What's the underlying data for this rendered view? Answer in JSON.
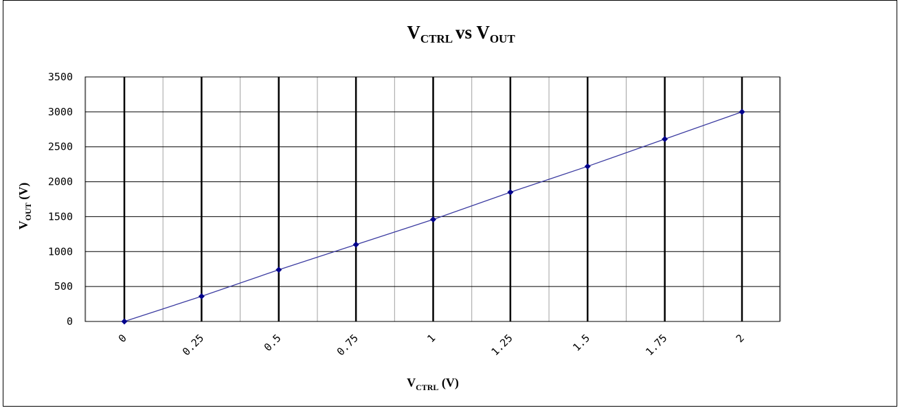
{
  "chart_data": {
    "type": "line",
    "title": {
      "main": "V",
      "sub": "CTRL",
      "mid": "vs V",
      "sub2": "OUT"
    },
    "xlabel": {
      "main": "V",
      "sub": "CTRL",
      "rest": " (V)"
    },
    "ylabel": {
      "main": "V",
      "sub": "OUT",
      "rest": " (V)"
    },
    "x": [
      0,
      0.25,
      0.5,
      0.75,
      1,
      1.25,
      1.5,
      1.75,
      2
    ],
    "x_tick_labels": [
      "0",
      "0.25",
      "0.5",
      "0.75",
      "1",
      "1.25",
      "1.5",
      "1.75",
      "2"
    ],
    "series": [
      {
        "values": [
          0,
          360,
          740,
          1100,
          1460,
          1850,
          2220,
          2610,
          3000
        ],
        "color": "#3a3aa0",
        "marker_color": "#00008b"
      }
    ],
    "y_ticks": [
      0,
      500,
      1000,
      1500,
      2000,
      2500,
      3000,
      3500
    ],
    "ylim": [
      0,
      3500
    ],
    "xlim": [
      0,
      2
    ],
    "grid": true
  }
}
